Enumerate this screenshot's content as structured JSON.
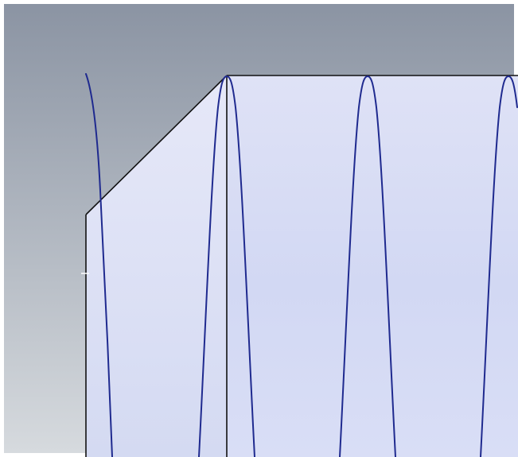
{
  "viewport": {
    "background_top": "#8b94a3",
    "background_bottom": "#d6dade",
    "frame_color": "#ffffff"
  },
  "part": {
    "face_fill_top": "#dfe2f6",
    "face_fill_mid": "#d2d8f3",
    "face_fill_bottom": "#d9def6",
    "edge_color": "#111111"
  },
  "helix": {
    "curve_color": "#1f2a8f"
  }
}
